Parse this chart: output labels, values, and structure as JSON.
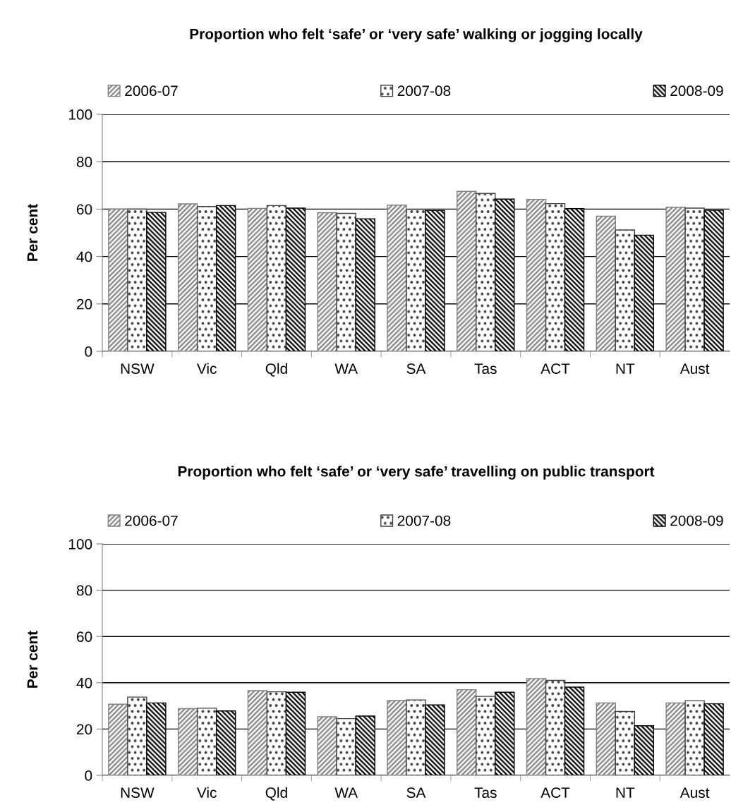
{
  "chart_data": [
    {
      "type": "bar",
      "title": "Proportion who felt ‘safe’ or ‘very safe’ walking or jogging locally",
      "ylabel": "Per cent",
      "categories": [
        "NSW",
        "Vic",
        "Qld",
        "WA",
        "SA",
        "Tas",
        "ACT",
        "NT",
        "Aust"
      ],
      "series": [
        {
          "name": "2006-07",
          "color": "#808080",
          "values": [
            60.0,
            62.2,
            60.3,
            58.5,
            61.7,
            67.5,
            64.1,
            57.0,
            60.8
          ]
        },
        {
          "name": "2007-08",
          "color": "#404040",
          "values": [
            60.0,
            61.1,
            61.5,
            58.2,
            59.9,
            66.6,
            62.3,
            51.2,
            60.4
          ]
        },
        {
          "name": "2008-09",
          "color": "#000000",
          "values": [
            58.6,
            61.5,
            60.4,
            55.9,
            59.4,
            64.2,
            60.2,
            49.0,
            59.5
          ]
        }
      ],
      "ylim": [
        0,
        100
      ],
      "yticks": [
        0,
        20,
        40,
        60,
        80,
        100
      ],
      "grid": "y",
      "legend": "top"
    },
    {
      "type": "bar",
      "title": "Proportion who felt ‘safe’ or ‘very safe’ travelling on public transport",
      "ylabel": "Per cent",
      "categories": [
        "NSW",
        "Vic",
        "Qld",
        "WA",
        "SA",
        "Tas",
        "ACT",
        "NT",
        "Aust"
      ],
      "series": [
        {
          "name": "2006-07",
          "color": "#808080",
          "values": [
            30.7,
            28.8,
            36.6,
            25.3,
            32.3,
            37.0,
            41.8,
            31.3,
            31.3
          ]
        },
        {
          "name": "2007-08",
          "color": "#404040",
          "values": [
            33.8,
            29.0,
            36.1,
            24.5,
            32.6,
            34.1,
            41.0,
            27.6,
            32.2
          ]
        },
        {
          "name": "2008-09",
          "color": "#000000",
          "values": [
            31.3,
            27.8,
            35.9,
            25.6,
            30.4,
            35.9,
            38.1,
            21.4,
            30.9
          ]
        }
      ],
      "ylim": [
        0,
        100
      ],
      "yticks": [
        0,
        20,
        40,
        60,
        80,
        100
      ],
      "grid": "y",
      "legend": "top"
    }
  ]
}
